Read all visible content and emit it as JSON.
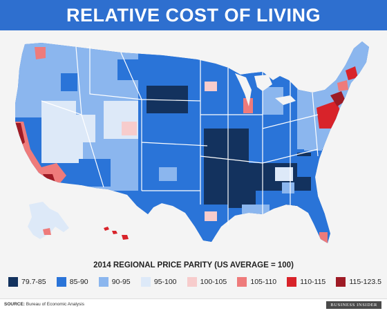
{
  "title": "RELATIVE COST OF LIVING",
  "legend": {
    "title": "2014 REGIONAL PRICE PARITY (US AVERAGE = 100)",
    "items": [
      {
        "label": "79.7-85",
        "color": "#13325e"
      },
      {
        "label": "85-90",
        "color": "#2a74d8"
      },
      {
        "label": "90-95",
        "color": "#8bb6ee"
      },
      {
        "label": "95-100",
        "color": "#dde9f8"
      },
      {
        "label": "100-105",
        "color": "#f7cccc"
      },
      {
        "label": "105-110",
        "color": "#ee7b7b"
      },
      {
        "label": "110-115",
        "color": "#d8232a"
      },
      {
        "label": "115-123.5",
        "color": "#9e1b25"
      }
    ]
  },
  "source": {
    "label": "SOURCE:",
    "text": "Bureau of Economic Analysis"
  },
  "brand": "BUSINESS INSIDER"
}
